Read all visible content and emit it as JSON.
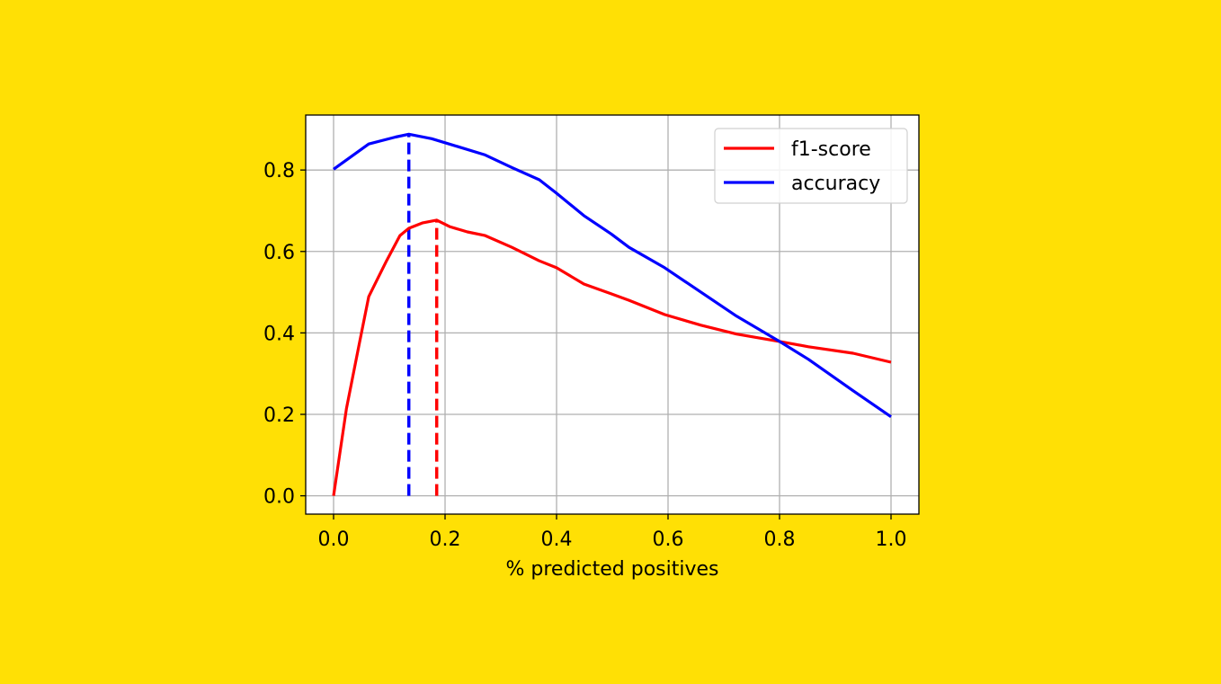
{
  "background_color": "#FFE005",
  "chart_data": {
    "type": "line",
    "title": "",
    "xlabel": "% predicted positives",
    "ylabel": "",
    "xlim": [
      -0.05,
      1.05
    ],
    "ylim": [
      -0.045,
      0.935
    ],
    "xticks": [
      0.0,
      0.2,
      0.4,
      0.6,
      0.8,
      1.0
    ],
    "xtick_labels": [
      "0.0",
      "0.2",
      "0.4",
      "0.6",
      "0.8",
      "1.0"
    ],
    "yticks": [
      0.0,
      0.2,
      0.4,
      0.6,
      0.8
    ],
    "ytick_labels": [
      "0.0",
      "0.2",
      "0.4",
      "0.6",
      "0.8"
    ],
    "grid": true,
    "legend_placement": "top-right",
    "series": [
      {
        "name": "f1-score",
        "color": "#FF0000",
        "x": [
          0,
          0.023,
          0.047,
          0.063,
          0.079,
          0.095,
          0.119,
          0.135,
          0.159,
          0.185,
          0.208,
          0.24,
          0.272,
          0.32,
          0.369,
          0.4,
          0.449,
          0.498,
          0.53,
          0.594,
          0.659,
          0.723,
          0.8,
          0.852,
          0.932,
          1.0
        ],
        "y": [
          0,
          0.214,
          0.379,
          0.489,
          0.533,
          0.577,
          0.639,
          0.657,
          0.67,
          0.677,
          0.661,
          0.648,
          0.639,
          0.61,
          0.577,
          0.56,
          0.52,
          0.496,
          0.48,
          0.445,
          0.419,
          0.397,
          0.379,
          0.366,
          0.35,
          0.328
        ]
      },
      {
        "name": "accuracy",
        "color": "#0000FF",
        "x": [
          0,
          0.063,
          0.111,
          0.135,
          0.176,
          0.224,
          0.272,
          0.32,
          0.369,
          0.4,
          0.449,
          0.498,
          0.53,
          0.594,
          0.659,
          0.723,
          0.8,
          0.852,
          0.932,
          1.0
        ],
        "y": [
          0.802,
          0.864,
          0.881,
          0.888,
          0.877,
          0.857,
          0.837,
          0.806,
          0.776,
          0.743,
          0.688,
          0.643,
          0.61,
          0.56,
          0.5,
          0.441,
          0.379,
          0.335,
          0.258,
          0.194
        ]
      }
    ],
    "vlines": [
      {
        "series": "accuracy",
        "x": 0.135,
        "ymax": 0.888,
        "color": "#0000FF",
        "style": "dashed"
      },
      {
        "series": "f1-score",
        "x": 0.185,
        "ymax": 0.677,
        "color": "#FF0000",
        "style": "dashed"
      }
    ]
  }
}
